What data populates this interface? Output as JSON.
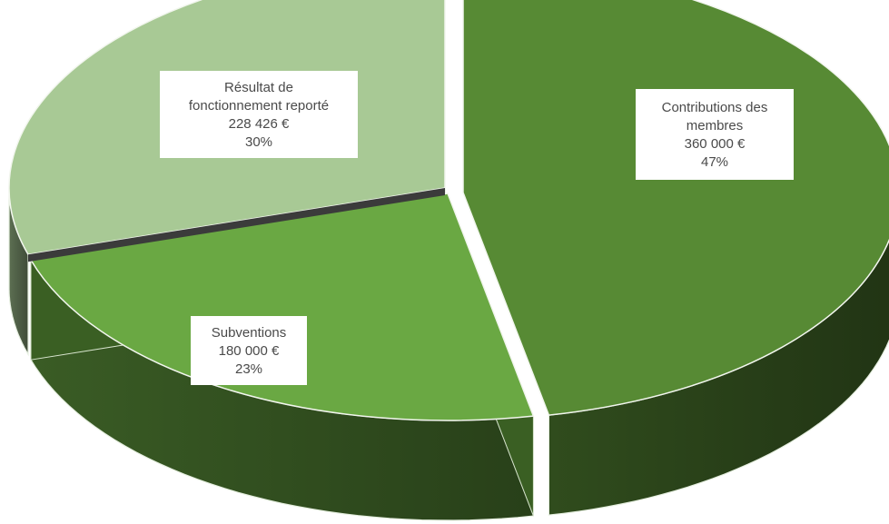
{
  "chart_data": {
    "type": "pie",
    "title": "",
    "currency": "€",
    "slices": [
      {
        "name_lines": [
          "Contributions des",
          "membres"
        ],
        "value": 360000,
        "value_label": "360 000 €",
        "percent": 47,
        "percent_label": "47%",
        "color": "#578a34",
        "dark_color": "#2b4419"
      },
      {
        "name_lines": [
          "Subventions"
        ],
        "value": 180000,
        "value_label": "180 000 €",
        "percent": 23,
        "percent_label": "23%",
        "color": "#6aa843",
        "dark_color": "#3a5f23"
      },
      {
        "name_lines": [
          "Résultat de",
          "fonctionnement reporté"
        ],
        "value": 228426,
        "value_label": "228 426 €",
        "percent": 30,
        "percent_label": "30%",
        "color": "#a8c995",
        "dark_color": "#3b3b3b"
      }
    ]
  }
}
